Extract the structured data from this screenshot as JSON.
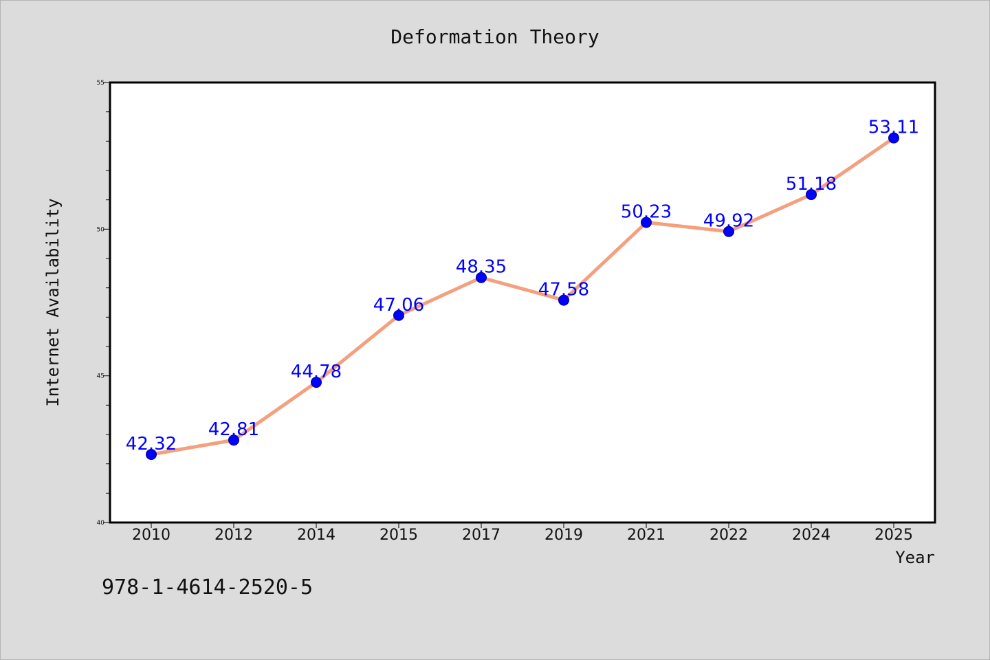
{
  "chart_data": {
    "type": "line",
    "title": "Deformation Theory",
    "xlabel": "Year",
    "ylabel": "Internet Availability",
    "categories": [
      "2010",
      "2012",
      "2014",
      "2015",
      "2017",
      "2019",
      "2021",
      "2022",
      "2024",
      "2025"
    ],
    "values": [
      42.32,
      42.81,
      44.78,
      47.06,
      48.35,
      47.58,
      50.23,
      49.92,
      51.18,
      53.11
    ],
    "data_labels": [
      "42.32",
      "42.81",
      "44.78",
      "47.06",
      "48.35",
      "47.58",
      "50.23",
      "49.92",
      "51.18",
      "53.11"
    ],
    "ylim": [
      40,
      55
    ],
    "yticks": [
      40,
      45,
      50,
      55
    ],
    "ytick_labels": [
      "40",
      "45",
      "50",
      "55"
    ],
    "grid": false,
    "colors": {
      "line": "#f4a07e",
      "marker": "#0000ff",
      "marker_edge": "#00008b",
      "data_label": "#0000ff"
    }
  },
  "footer_text": "978-1-4614-2520-5"
}
